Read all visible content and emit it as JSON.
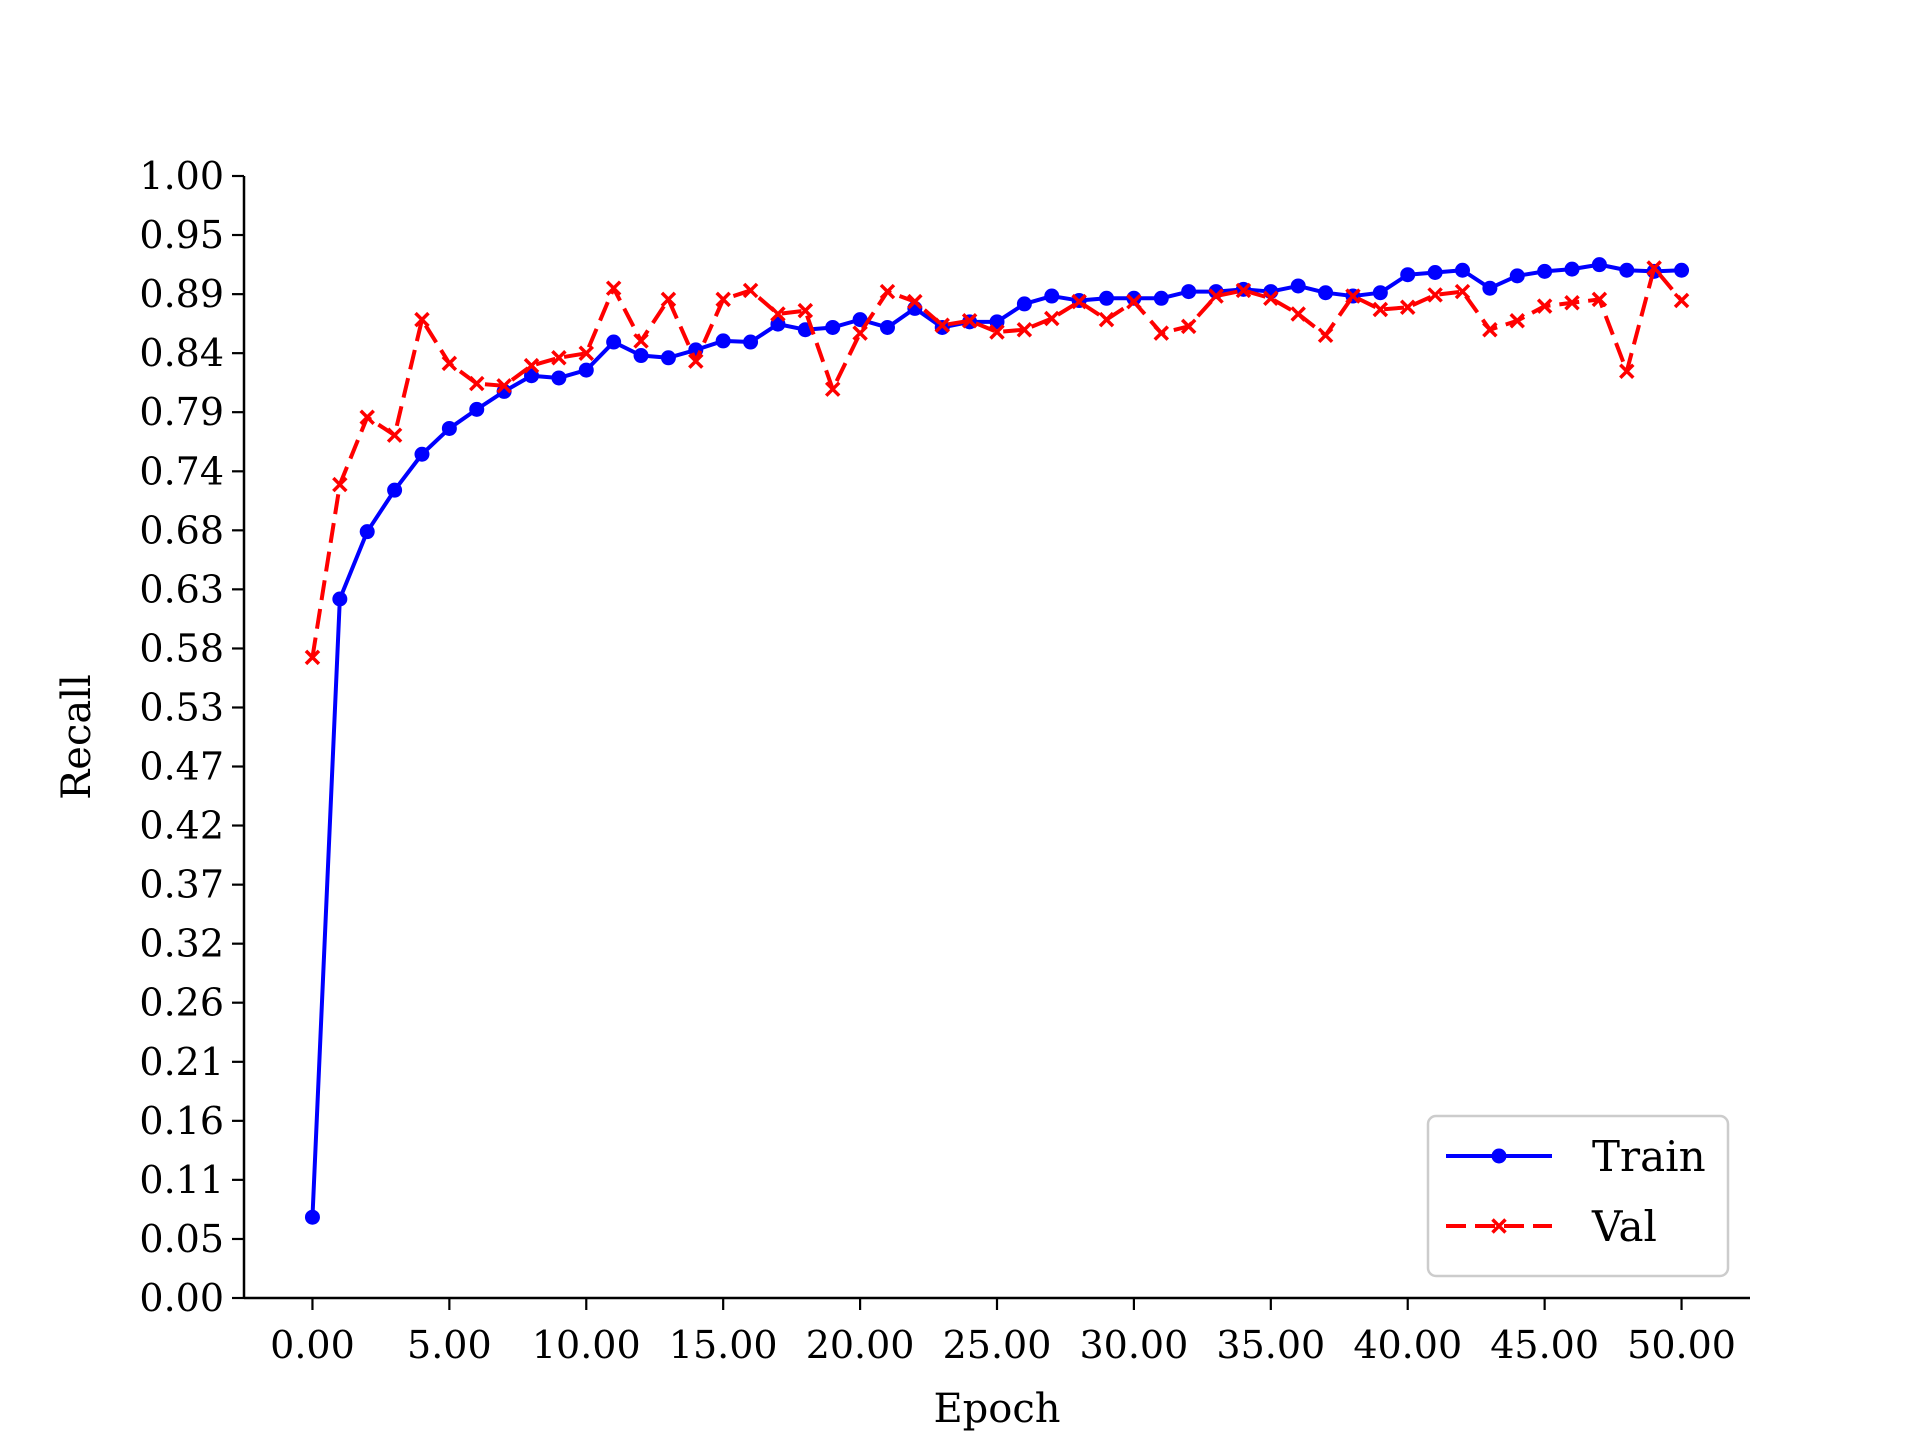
{
  "chart_data": {
    "type": "line",
    "title": "",
    "xlabel": "Epoch",
    "ylabel": "Recall",
    "xlim": [
      -2.5,
      52.5
    ],
    "ylim": [
      0.0,
      1.0
    ],
    "x_ticks": [
      0,
      5,
      10,
      15,
      20,
      25,
      30,
      35,
      40,
      45,
      50
    ],
    "x_tick_labels": [
      "0.00",
      "5.00",
      "10.00",
      "15.00",
      "20.00",
      "25.00",
      "30.00",
      "35.00",
      "40.00",
      "45.00",
      "50.00"
    ],
    "y_ticks": [
      0.0,
      0.0526,
      0.1053,
      0.1579,
      0.2105,
      0.2632,
      0.3158,
      0.3684,
      0.4211,
      0.4737,
      0.5263,
      0.5789,
      0.6316,
      0.6842,
      0.7368,
      0.7895,
      0.8421,
      0.8947,
      0.9474,
      1.0
    ],
    "y_tick_labels": [
      "0.00",
      "0.05",
      "0.11",
      "0.16",
      "0.21",
      "0.26",
      "0.32",
      "0.37",
      "0.42",
      "0.47",
      "0.53",
      "0.58",
      "0.63",
      "0.68",
      "0.74",
      "0.79",
      "0.84",
      "0.89",
      "0.95",
      "1.00"
    ],
    "grid": false,
    "legend_position": "bottom-right",
    "x": [
      0,
      1,
      2,
      3,
      4,
      5,
      6,
      7,
      8,
      9,
      10,
      11,
      12,
      13,
      14,
      15,
      16,
      17,
      18,
      19,
      20,
      21,
      22,
      23,
      24,
      25,
      26,
      27,
      28,
      29,
      30,
      31,
      32,
      33,
      34,
      35,
      36,
      37,
      38,
      39,
      40,
      41,
      42,
      43,
      44,
      45,
      46,
      47,
      48,
      49,
      50
    ],
    "series": [
      {
        "name": "Train",
        "color": "#0000ff",
        "line_style": "solid",
        "marker": "circle",
        "values": [
          0.072,
          0.623,
          0.683,
          0.72,
          0.752,
          0.775,
          0.792,
          0.808,
          0.822,
          0.82,
          0.827,
          0.852,
          0.84,
          0.838,
          0.845,
          0.853,
          0.852,
          0.868,
          0.863,
          0.865,
          0.872,
          0.865,
          0.882,
          0.865,
          0.87,
          0.87,
          0.886,
          0.893,
          0.889,
          0.891,
          0.891,
          0.891,
          0.897,
          0.897,
          0.899,
          0.897,
          0.902,
          0.896,
          0.893,
          0.896,
          0.912,
          0.914,
          0.916,
          0.9,
          0.911,
          0.915,
          0.917,
          0.921,
          0.916,
          0.915,
          0.916
        ]
      },
      {
        "name": "Val",
        "color": "#ff0000",
        "line_style": "dashed",
        "marker": "x",
        "values": [
          0.571,
          0.725,
          0.785,
          0.769,
          0.872,
          0.833,
          0.815,
          0.813,
          0.831,
          0.838,
          0.842,
          0.9,
          0.853,
          0.89,
          0.835,
          0.89,
          0.898,
          0.877,
          0.88,
          0.81,
          0.86,
          0.897,
          0.888,
          0.867,
          0.871,
          0.861,
          0.863,
          0.873,
          0.888,
          0.872,
          0.888,
          0.86,
          0.866,
          0.893,
          0.898,
          0.891,
          0.877,
          0.858,
          0.893,
          0.881,
          0.883,
          0.894,
          0.897,
          0.863,
          0.871,
          0.884,
          0.887,
          0.89,
          0.826,
          0.918,
          0.889
        ]
      }
    ]
  }
}
